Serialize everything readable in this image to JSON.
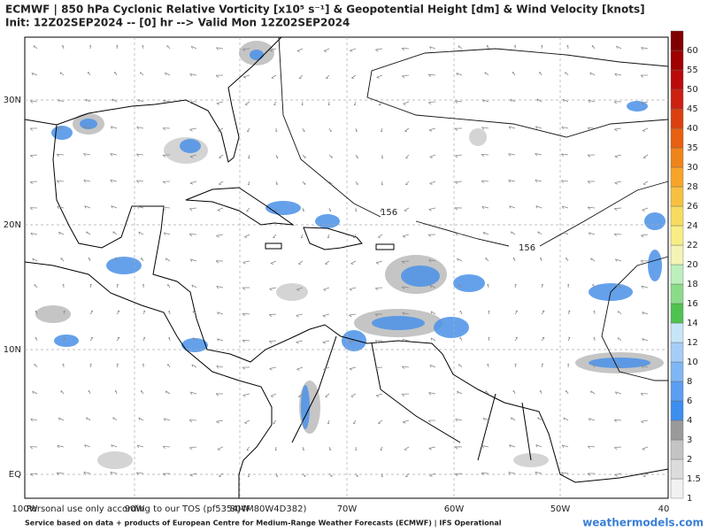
{
  "header": {
    "title": "ECMWF | 850 hPa Cyclonic Relative Vorticity [x10⁵ s⁻¹] & Geopotential Height [dm] & Wind Velocity [knots]",
    "subtitle": "Init: 12Z02SEP2024 -- [0] hr --> Valid Mon 12Z02SEP2024"
  },
  "map": {
    "lat_labels": [
      "30N",
      "20N",
      "10N",
      "EQ"
    ],
    "lon_labels": [
      "100W",
      "90W",
      "80W",
      "70W",
      "60W",
      "50W",
      "40"
    ],
    "contour_labels": [
      "156",
      "156"
    ]
  },
  "colorbar": {
    "labels": [
      1,
      1.5,
      2,
      3,
      4,
      6,
      8,
      10,
      12,
      14,
      16,
      18,
      20,
      22,
      24,
      26,
      28,
      30,
      35,
      40,
      45,
      50,
      55,
      60
    ],
    "colors": [
      "#f2f2f2",
      "#dcdcdc",
      "#c4c4c4",
      "#9a9a9a",
      "#3d8ef0",
      "#5a9ff2",
      "#7fb6f4",
      "#a6cdf8",
      "#c6e6f8",
      "#4fc24f",
      "#8adc8a",
      "#bdf0bd",
      "#f4f4b4",
      "#f8ee84",
      "#f8dc60",
      "#f8c040",
      "#f8a428",
      "#f08418",
      "#e86010",
      "#dc4010",
      "#cc2010",
      "#bb0a0a",
      "#a00000",
      "#800000"
    ]
  },
  "footer": {
    "disclaimer": "Personal use only according to our TOS (pf5354J4M80W4D382)",
    "service": "Service based on data + products of European Centre for Medium-Range Weather Forecasts (ECMWF) | IFS Operational",
    "site": "weathermodels.com"
  }
}
